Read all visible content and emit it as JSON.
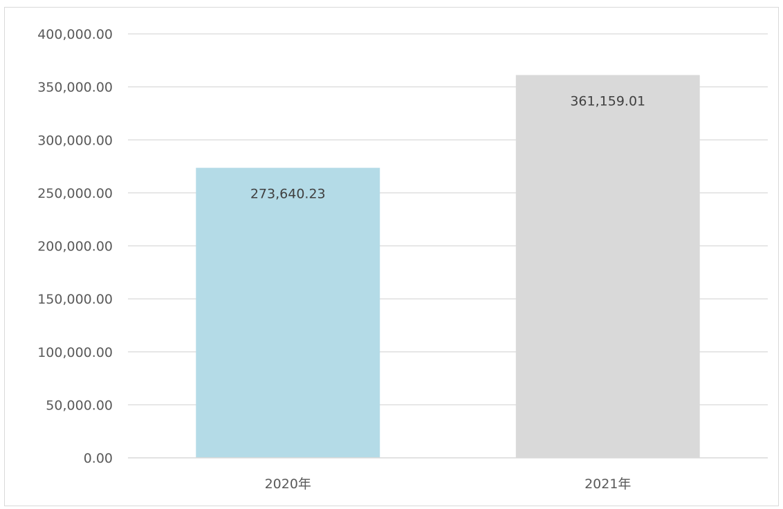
{
  "chart_data": {
    "type": "bar",
    "categories": [
      "2020年",
      "2021年"
    ],
    "values": [
      273640.23,
      361159.01
    ],
    "data_labels": [
      "273,640.23",
      "361,159.01"
    ],
    "bar_colors": [
      "#b4dbe7",
      "#d9d9d9"
    ],
    "ylim": [
      0,
      400000
    ],
    "yticks": [
      0,
      50000,
      100000,
      150000,
      200000,
      250000,
      300000,
      350000,
      400000
    ],
    "ytick_labels": [
      "0.00",
      "50,000.00",
      "100,000.00",
      "150,000.00",
      "200,000.00",
      "250,000.00",
      "300,000.00",
      "350,000.00",
      "400,000.00"
    ],
    "grid": true,
    "legend": "none",
    "gridline_color": "#d9d9d9",
    "axis_color": "#d9d9d9"
  }
}
